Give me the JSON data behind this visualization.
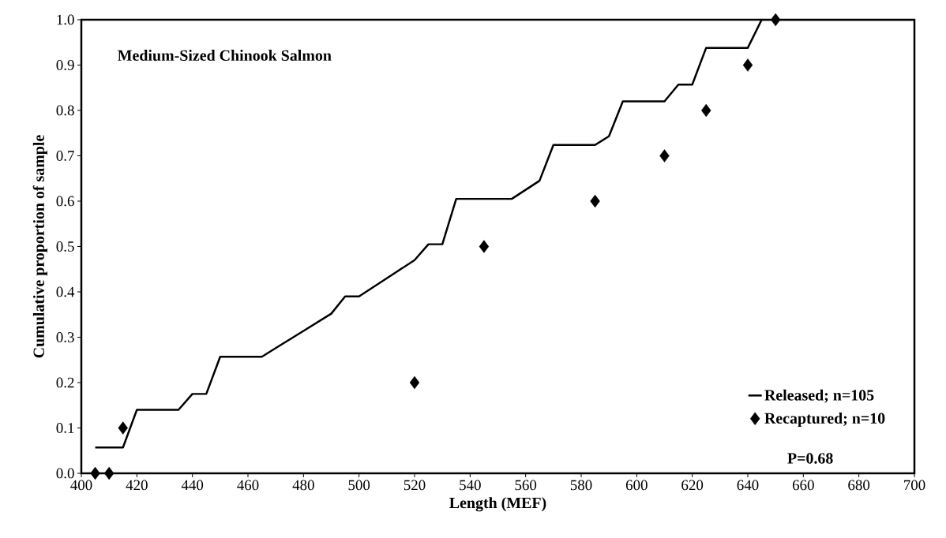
{
  "chart_data": {
    "type": "line",
    "title": "Medium-Sized Chinook Salmon",
    "xlabel": "Length (MEF)",
    "ylabel": "Cumulative proportion of sample",
    "series": [
      {
        "name": "Released; n=105",
        "color": "#000000",
        "marker": "none",
        "line_style": "solid",
        "x": [
          405,
          415,
          420,
          435,
          440,
          445,
          450,
          465,
          470,
          480,
          490,
          495,
          500,
          510,
          520,
          525,
          530,
          535,
          555,
          560,
          565,
          570,
          585,
          590,
          595,
          610,
          615,
          620,
          625,
          640,
          645,
          700
        ],
        "values": [
          0.057,
          0.057,
          0.14,
          0.14,
          0.175,
          0.175,
          0.257,
          0.257,
          0.276,
          0.314,
          0.352,
          0.39,
          0.39,
          0.43,
          0.47,
          0.505,
          0.505,
          0.605,
          0.605,
          0.625,
          0.645,
          0.724,
          0.724,
          0.743,
          0.82,
          0.82,
          0.857,
          0.857,
          0.938,
          0.938,
          1.0,
          1.0
        ]
      },
      {
        "name": "Recaptured; n=10",
        "type": "scatter",
        "color": "#000000",
        "marker": "diamond",
        "x": [
          405,
          410,
          415,
          520,
          545,
          585,
          610,
          625,
          640,
          650
        ],
        "values": [
          0,
          0,
          0.1,
          0.2,
          0.5,
          0.6,
          0.7,
          0.8,
          0.9,
          1.0
        ]
      }
    ],
    "annotations": [
      "P=0.68"
    ],
    "xlim": [
      400,
      700
    ],
    "xticks": [
      400,
      420,
      440,
      460,
      480,
      500,
      520,
      540,
      560,
      580,
      600,
      620,
      640,
      660,
      680,
      700
    ],
    "ylim": [
      0,
      1
    ],
    "yticks": [
      {
        "value": 0,
        "label": "0.0"
      },
      0.1,
      0.2,
      0.3,
      0.4,
      0.5,
      0.6,
      0.7,
      0.8,
      0.9,
      {
        "value": 1,
        "label": "1.0"
      }
    ],
    "grid": false,
    "legend": "bottom right"
  }
}
